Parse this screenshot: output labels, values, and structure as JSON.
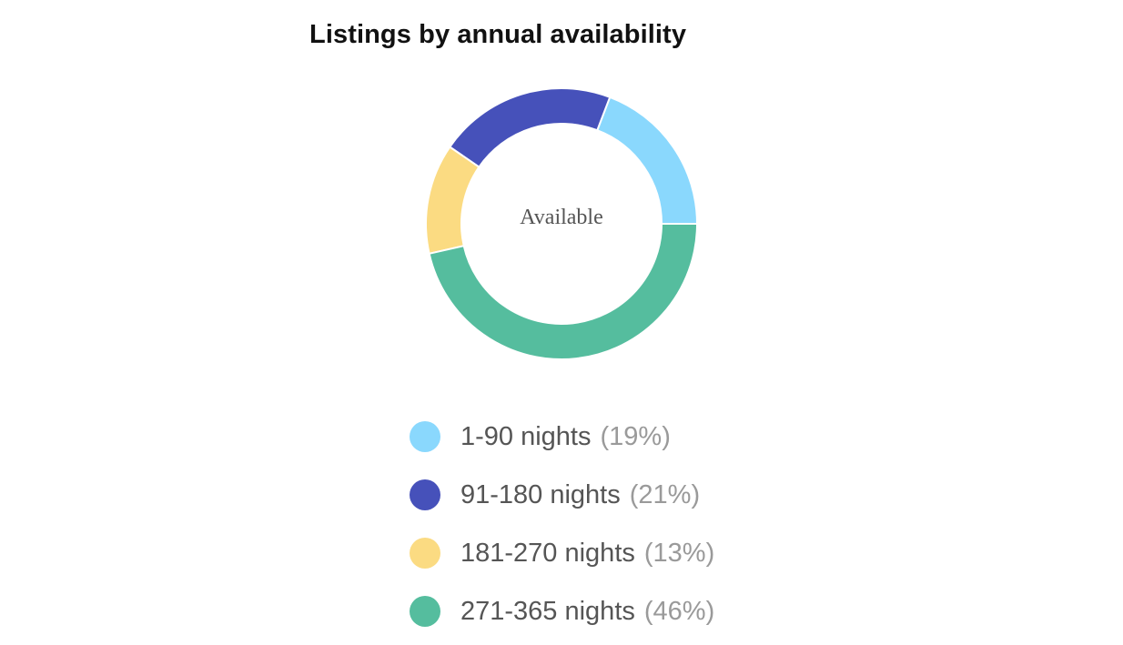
{
  "chart_data": {
    "type": "pie",
    "variant": "donut",
    "title": "Listings by annual availability",
    "center_label": "Available",
    "legend_position": "bottom",
    "categories": [
      "1-90 nights",
      "91-180 nights",
      "181-270 nights",
      "271-365 nights"
    ],
    "values": [
      19,
      21,
      13,
      46
    ],
    "percent_labels": [
      "(19%)",
      "(21%)",
      "(13%)",
      "(46%)"
    ],
    "colors": [
      "#8ad8fd",
      "#4651ba",
      "#fbdb82",
      "#55bd9e"
    ]
  }
}
